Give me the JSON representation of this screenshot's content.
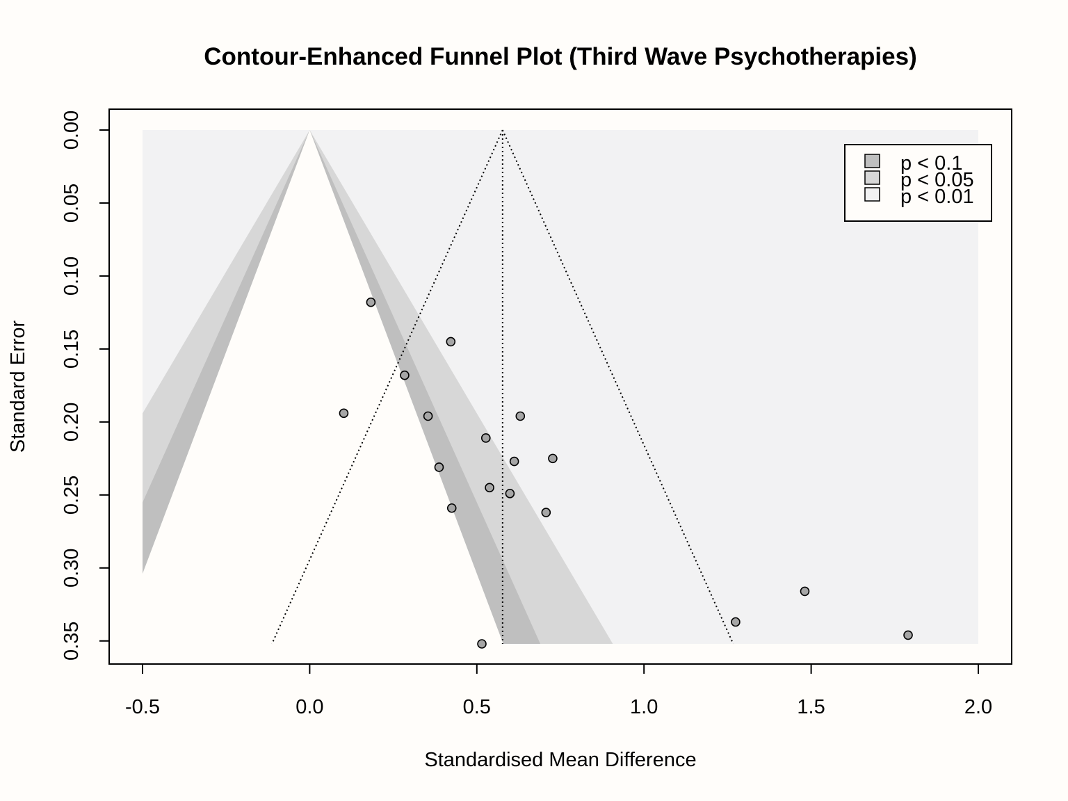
{
  "chart_data": {
    "type": "scatter",
    "title": "Contour-Enhanced Funnel Plot (Third Wave Psychotherapies)",
    "xlabel": "Standardised Mean Difference",
    "ylabel": "Standard Error",
    "xlim": [
      -0.5,
      2.0
    ],
    "ylim": [
      0.0,
      0.352
    ],
    "y_reversed": true,
    "x_ticks": [
      "-0.5",
      "0.0",
      "0.5",
      "1.0",
      "1.5",
      "2.0"
    ],
    "y_ticks": [
      "0.00",
      "0.05",
      "0.10",
      "0.15",
      "0.20",
      "0.25",
      "0.30",
      "0.35"
    ],
    "pooled_estimate": 0.577,
    "contours": [
      {
        "label": "p < 0.1",
        "z": 1.645,
        "color": "#bfbfbf"
      },
      {
        "label": "p < 0.05",
        "z": 1.96,
        "color": "#d7d7d7"
      },
      {
        "label": "p < 0.01",
        "z": 2.576,
        "color": "#f2f2f3"
      }
    ],
    "legend": {
      "position": "top-right"
    },
    "points": [
      {
        "x": 0.183,
        "y": 0.118
      },
      {
        "x": 0.422,
        "y": 0.145
      },
      {
        "x": 0.284,
        "y": 0.168
      },
      {
        "x": 0.102,
        "y": 0.194
      },
      {
        "x": 0.354,
        "y": 0.196
      },
      {
        "x": 0.63,
        "y": 0.196
      },
      {
        "x": 0.527,
        "y": 0.211
      },
      {
        "x": 0.727,
        "y": 0.225
      },
      {
        "x": 0.612,
        "y": 0.227
      },
      {
        "x": 0.387,
        "y": 0.231
      },
      {
        "x": 0.538,
        "y": 0.245
      },
      {
        "x": 0.599,
        "y": 0.249
      },
      {
        "x": 0.425,
        "y": 0.259
      },
      {
        "x": 0.707,
        "y": 0.262
      },
      {
        "x": 1.481,
        "y": 0.316
      },
      {
        "x": 1.274,
        "y": 0.337
      },
      {
        "x": 1.79,
        "y": 0.346
      },
      {
        "x": 0.515,
        "y": 0.352
      }
    ]
  }
}
